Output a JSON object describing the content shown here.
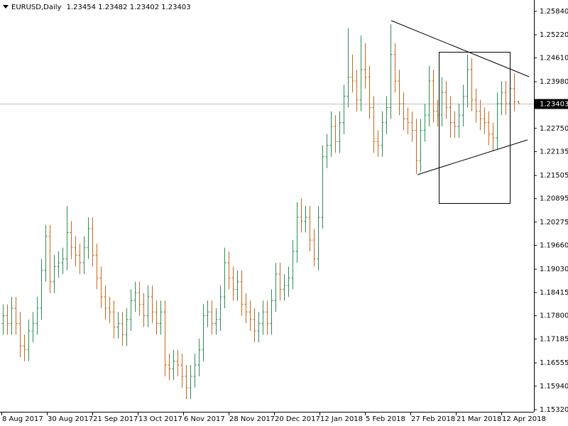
{
  "chart_data": {
    "type": "ohlc",
    "symbol": "EURUSD,Daily",
    "up_color": "#2e8b57",
    "down_color": "#c8661e",
    "last_line_color": "#c0c0c0",
    "ylim": [
      1.1532,
      1.2584
    ],
    "yticks": [
      {
        "value": 1.2584,
        "label": "1.25840"
      },
      {
        "value": 1.2522,
        "label": "1.25220"
      },
      {
        "value": 1.2461,
        "label": "1.24610"
      },
      {
        "value": 1.2398,
        "label": "1.23980"
      },
      {
        "value": 1.2275,
        "label": "1.22750"
      },
      1.22135,
      1.21505,
      1.20895,
      1.20275,
      {
        "value": 1.1966,
        "label": "1.19660"
      },
      {
        "value": 1.1903,
        "label": "1.19030"
      },
      1.18415,
      {
        "value": 1.178,
        "label": "1.17800"
      },
      1.17185,
      1.16555,
      {
        "value": 1.1594,
        "label": "1.15940"
      },
      {
        "value": 1.1532,
        "label": "1.15320"
      }
    ],
    "date_labels": [
      "8 Aug 2017",
      "30 Aug 2017",
      "21 Sep 2017",
      "13 Oct 2017",
      "6 Nov 2017",
      "28 Nov 2017",
      "20 Dec 2017",
      "12 Jan 2018",
      "5 Feb 2018",
      "27 Feb 2018",
      "21 Mar 2018",
      "12 Apr 2018"
    ],
    "open": [
      1.176,
      1.178,
      1.176,
      1.18,
      1.176,
      1.17,
      1.169,
      1.174,
      1.176,
      1.18,
      1.19,
      1.199,
      1.187,
      1.191,
      1.192,
      1.193,
      1.2,
      1.196,
      1.194,
      1.192,
      1.196,
      1.201,
      1.194,
      1.188,
      1.183,
      1.18,
      1.179,
      1.175,
      1.176,
      1.173,
      1.177,
      1.182,
      1.184,
      1.181,
      1.178,
      1.183,
      1.179,
      1.176,
      1.179,
      1.165,
      1.164,
      1.166,
      1.165,
      1.162,
      1.159,
      1.162,
      1.165,
      1.169,
      1.178,
      1.179,
      1.176,
      1.177,
      1.183,
      1.192,
      1.188,
      1.185,
      1.187,
      1.181,
      1.179,
      1.177,
      1.174,
      1.176,
      1.179,
      1.176,
      1.182,
      1.189,
      1.185,
      1.186,
      1.188,
      1.195,
      1.204,
      1.203,
      1.204,
      1.198,
      1.193,
      1.204,
      1.22,
      1.223,
      1.228,
      1.224,
      1.229,
      1.236,
      1.241,
      1.24,
      1.235,
      1.243,
      1.241,
      1.233,
      1.224,
      1.223,
      1.229,
      1.233,
      1.247,
      1.24,
      1.234,
      1.23,
      1.229,
      1.227,
      1.219,
      1.227,
      1.231,
      1.24,
      1.232,
      1.231,
      1.237,
      1.233,
      1.229,
      1.228,
      1.231,
      1.236,
      1.243,
      1.235,
      1.232,
      1.23,
      1.229,
      1.226,
      1.225,
      1.234,
      1.237,
      1.234,
      1.238,
      1.23454
    ],
    "high": [
      1.181,
      1.181,
      1.183,
      1.183,
      1.179,
      1.173,
      1.177,
      1.179,
      1.183,
      1.193,
      1.202,
      1.202,
      1.194,
      1.195,
      1.196,
      1.207,
      1.203,
      1.199,
      1.197,
      1.199,
      1.204,
      1.204,
      1.197,
      1.191,
      1.186,
      1.183,
      1.182,
      1.179,
      1.179,
      1.18,
      1.185,
      1.187,
      1.187,
      1.184,
      1.186,
      1.186,
      1.182,
      1.182,
      1.182,
      1.168,
      1.169,
      1.169,
      1.168,
      1.165,
      1.165,
      1.168,
      1.172,
      1.181,
      1.182,
      1.182,
      1.18,
      1.186,
      1.196,
      1.195,
      1.191,
      1.19,
      1.19,
      1.184,
      1.182,
      1.18,
      1.179,
      1.182,
      1.182,
      1.185,
      1.192,
      1.192,
      1.189,
      1.191,
      1.198,
      1.208,
      1.209,
      1.207,
      1.207,
      1.201,
      1.207,
      1.223,
      1.226,
      1.232,
      1.231,
      1.232,
      1.239,
      1.254,
      1.247,
      1.243,
      1.252,
      1.25,
      1.244,
      1.236,
      1.227,
      1.232,
      1.236,
      1.255,
      1.25,
      1.243,
      1.237,
      1.233,
      1.232,
      1.23,
      1.23,
      1.234,
      1.244,
      1.243,
      1.235,
      1.241,
      1.24,
      1.236,
      1.232,
      1.234,
      1.239,
      1.247,
      1.246,
      1.238,
      1.235,
      1.233,
      1.232,
      1.229,
      1.237,
      1.24,
      1.24,
      1.241,
      1.242,
      1.23482
    ],
    "low": [
      1.173,
      1.173,
      1.173,
      1.173,
      1.167,
      1.166,
      1.166,
      1.171,
      1.173,
      1.177,
      1.187,
      1.184,
      1.184,
      1.188,
      1.189,
      1.19,
      1.193,
      1.191,
      1.189,
      1.189,
      1.193,
      1.191,
      1.185,
      1.18,
      1.177,
      1.176,
      1.172,
      1.172,
      1.17,
      1.17,
      1.174,
      1.179,
      1.178,
      1.175,
      1.175,
      1.176,
      1.173,
      1.173,
      1.162,
      1.161,
      1.161,
      1.162,
      1.159,
      1.156,
      1.156,
      1.159,
      1.162,
      1.166,
      1.175,
      1.173,
      1.173,
      1.174,
      1.18,
      1.185,
      1.182,
      1.182,
      1.178,
      1.176,
      1.174,
      1.171,
      1.171,
      1.173,
      1.173,
      1.173,
      1.179,
      1.182,
      1.182,
      1.183,
      1.185,
      1.192,
      1.2,
      1.2,
      1.195,
      1.191,
      1.19,
      1.201,
      1.217,
      1.22,
      1.221,
      1.221,
      1.226,
      1.233,
      1.237,
      1.232,
      1.232,
      1.238,
      1.23,
      1.221,
      1.22,
      1.22,
      1.226,
      1.23,
      1.237,
      1.231,
      1.227,
      1.226,
      1.224,
      1.2155,
      1.216,
      1.224,
      1.228,
      1.229,
      1.228,
      1.228,
      1.23,
      1.225,
      1.225,
      1.225,
      1.228,
      1.233,
      1.232,
      1.229,
      1.227,
      1.226,
      1.223,
      1.2215,
      1.222,
      1.231,
      1.231,
      1.231,
      1.232,
      1.23402
    ],
    "close": [
      1.178,
      1.176,
      1.18,
      1.176,
      1.17,
      1.169,
      1.174,
      1.176,
      1.18,
      1.19,
      1.199,
      1.187,
      1.191,
      1.192,
      1.193,
      1.2,
      1.196,
      1.194,
      1.192,
      1.196,
      1.201,
      1.194,
      1.188,
      1.183,
      1.18,
      1.179,
      1.175,
      1.176,
      1.173,
      1.177,
      1.182,
      1.184,
      1.181,
      1.178,
      1.183,
      1.179,
      1.176,
      1.179,
      1.165,
      1.164,
      1.166,
      1.165,
      1.162,
      1.159,
      1.162,
      1.165,
      1.169,
      1.178,
      1.179,
      1.176,
      1.177,
      1.183,
      1.192,
      1.188,
      1.185,
      1.187,
      1.181,
      1.179,
      1.177,
      1.174,
      1.176,
      1.179,
      1.176,
      1.182,
      1.189,
      1.185,
      1.186,
      1.188,
      1.195,
      1.204,
      1.203,
      1.204,
      1.198,
      1.193,
      1.204,
      1.22,
      1.223,
      1.228,
      1.224,
      1.229,
      1.236,
      1.241,
      1.24,
      1.235,
      1.243,
      1.241,
      1.233,
      1.224,
      1.223,
      1.229,
      1.233,
      1.247,
      1.24,
      1.234,
      1.23,
      1.229,
      1.227,
      1.219,
      1.227,
      1.231,
      1.24,
      1.232,
      1.231,
      1.237,
      1.233,
      1.229,
      1.228,
      1.231,
      1.236,
      1.243,
      1.235,
      1.232,
      1.23,
      1.229,
      1.226,
      1.225,
      1.234,
      1.237,
      1.234,
      1.238,
      1.2345,
      1.23403
    ]
  }
}
